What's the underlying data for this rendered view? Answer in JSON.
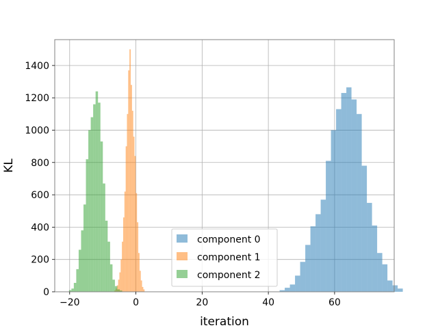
{
  "chart_data": {
    "type": "bar",
    "title": "",
    "xlabel": "iteration",
    "ylabel": "KL",
    "xlim": [
      -24.5,
      78
    ],
    "ylim": [
      0,
      1560
    ],
    "xticks": [
      -20,
      0,
      20,
      40,
      60
    ],
    "yticks": [
      0,
      200,
      400,
      600,
      800,
      1000,
      1200,
      1400
    ],
    "grid": true,
    "legend_position": "lower-center",
    "series": [
      {
        "name": "component 0",
        "color": "#1f77b4",
        "bin_start": 43.4,
        "bin_width": 1.55,
        "counts": [
          10,
          25,
          45,
          100,
          185,
          290,
          405,
          480,
          570,
          810,
          1000,
          1130,
          1230,
          1265,
          1190,
          1100,
          780,
          550,
          410,
          240,
          170,
          70,
          40,
          20
        ]
      },
      {
        "name": "component 1",
        "color": "#ff7f0e",
        "bin_start": -6.5,
        "bin_width": 0.38,
        "counts": [
          8,
          20,
          40,
          75,
          120,
          200,
          310,
          460,
          620,
          900,
          1100,
          1370,
          1500,
          1280,
          1120,
          960,
          840,
          610,
          430,
          240,
          130,
          70,
          30,
          15
        ]
      },
      {
        "name": "component 2",
        "color": "#2ca02c",
        "bin_start": -20.2,
        "bin_width": 0.73,
        "counts": [
          10,
          20,
          55,
          140,
          260,
          380,
          540,
          820,
          1000,
          1080,
          1160,
          1240,
          1170,
          930,
          670,
          440,
          310,
          170,
          75,
          35,
          15,
          8
        ]
      }
    ]
  }
}
